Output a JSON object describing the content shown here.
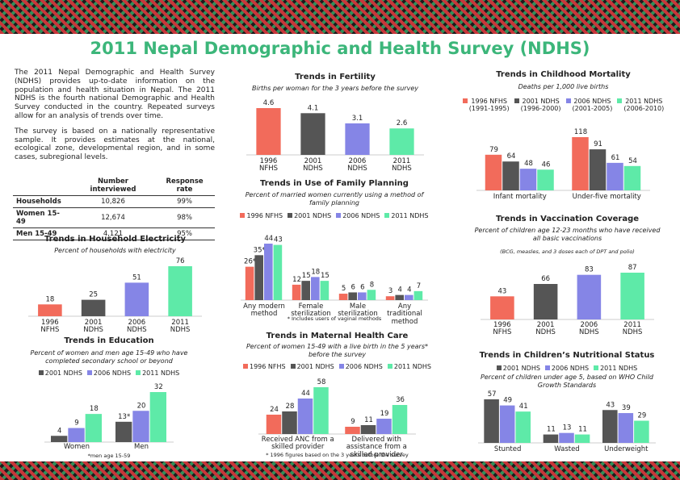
{
  "title": "2011 Nepal Demographic and Health Survey (NDHS)",
  "intro": [
    "The 2011 Nepal Demographic and Health Survey (NDHS) provides up-to-date information on the population and health situation in Nepal. The 2011 NDHS is the fourth national Demographic and Health Survey conducted in the country. Repeated surveys allow for an analysis of trends over time.",
    "The survey is based on a nationally representative sample. It provides estimates at the national, ecological zone, developmental region, and in some cases, subregional levels."
  ],
  "table": {
    "header": [
      "Number interviewed",
      "Response rate"
    ],
    "rows": [
      [
        "Households",
        "10,826",
        "99%"
      ],
      [
        "Women 15-49",
        "12,674",
        "98%"
      ],
      [
        "Men 15-49",
        "4,121",
        "95%"
      ]
    ]
  },
  "chart_data": [
    {
      "type": "bar",
      "title": "Trends in Fertility",
      "subtitle": "Births per woman for the 3 years before the survey",
      "categories": [
        "1996 NFHS",
        "2001 NDHS",
        "2006 NDHS",
        "2011 NDHS"
      ],
      "values": [
        4.6,
        4.1,
        3.1,
        2.6
      ],
      "colors": [
        "#f26b5b",
        "#555555",
        "#8585e6",
        "#5eeaa8"
      ]
    },
    {
      "type": "bar",
      "title": "Trends in Household Electricity",
      "subtitle": "Percent of households with electricity",
      "categories": [
        "1996 NFHS",
        "2001 NDHS",
        "2006 NDHS",
        "2011 NDHS"
      ],
      "values": [
        18,
        25,
        51,
        76
      ],
      "colors": [
        "#f26b5b",
        "#555555",
        "#8585e6",
        "#5eeaa8"
      ]
    },
    {
      "type": "bar",
      "title": "Trends in Use of Family Planning",
      "subtitle": "Percent of married women currently using a method of family planning",
      "categories": [
        "Any modern method",
        "Female sterilization",
        "Male sterilization",
        "Any traditional method"
      ],
      "series": [
        {
          "name": "1996 NFHS",
          "color": "#f26b5b",
          "values": [
            26,
            12,
            5,
            3
          ],
          "value_labels": [
            "26*",
            "12",
            "5",
            "3"
          ]
        },
        {
          "name": "2001 NDHS",
          "color": "#555555",
          "values": [
            35,
            15,
            6,
            4
          ],
          "value_labels": [
            "35*",
            "15",
            "6",
            "4"
          ]
        },
        {
          "name": "2006 NDHS",
          "color": "#8585e6",
          "values": [
            44,
            18,
            6,
            4
          ]
        },
        {
          "name": "2011 NDHS",
          "color": "#5eeaa8",
          "values": [
            43,
            15,
            8,
            7
          ]
        }
      ],
      "note": "* Includes users of vaginal methods"
    },
    {
      "type": "bar",
      "title": "Trends in Education",
      "subtitle": "Percent of women and men age 15-49 who have completed secondary school or beyond",
      "categories": [
        "Women",
        "Men"
      ],
      "series": [
        {
          "name": "2001 NDHS",
          "color": "#555555",
          "values": [
            4,
            13
          ],
          "value_labels": [
            "4",
            "13*"
          ]
        },
        {
          "name": "2006 NDHS",
          "color": "#8585e6",
          "values": [
            9,
            20
          ]
        },
        {
          "name": "2011 NDHS",
          "color": "#5eeaa8",
          "values": [
            18,
            32
          ]
        }
      ],
      "note": "*men age 15-59"
    },
    {
      "type": "bar",
      "title": "Trends in Maternal Health Care",
      "subtitle": "Percent of women 15-49 with a live birth in the 5 years* before the survey",
      "categories": [
        "Received ANC from a skilled provider",
        "Delivered with assistance from a skilled provider"
      ],
      "series": [
        {
          "name": "1996 NFHS",
          "color": "#f26b5b",
          "values": [
            24,
            9
          ]
        },
        {
          "name": "2001 NDHS",
          "color": "#555555",
          "values": [
            28,
            11
          ]
        },
        {
          "name": "2006 NDHS",
          "color": "#8585e6",
          "values": [
            44,
            19
          ]
        },
        {
          "name": "2011 NDHS",
          "color": "#5eeaa8",
          "values": [
            58,
            36
          ]
        }
      ],
      "note": "* 1996 figures based on the 3 years before the survey"
    },
    {
      "type": "bar",
      "title": "Trends in Childhood Mortality",
      "subtitle": "Deaths per 1,000 live births",
      "categories": [
        "Infant mortality",
        "Under-five mortality"
      ],
      "series": [
        {
          "name": "1996 NFHS",
          "period": "(1991-1995)",
          "color": "#f26b5b",
          "values": [
            79,
            118
          ]
        },
        {
          "name": "2001 NDHS",
          "period": "(1996-2000)",
          "color": "#555555",
          "values": [
            64,
            91
          ]
        },
        {
          "name": "2006 NDHS",
          "period": "(2001-2005)",
          "color": "#8585e6",
          "values": [
            48,
            61
          ]
        },
        {
          "name": "2011 NDHS",
          "period": "(2006-2010)",
          "color": "#5eeaa8",
          "values": [
            46,
            54
          ]
        }
      ]
    },
    {
      "type": "bar",
      "title": "Trends in Vaccination Coverage",
      "subtitle": "Percent of children age 12-23 months who have received all basic vaccinations",
      "note": "(BCG, measles, and 3 doses each of DPT and polio)",
      "categories": [
        "1996 NFHS",
        "2001 NDHS",
        "2006 NDHS",
        "2011 NDHS"
      ],
      "values": [
        43,
        66,
        83,
        87
      ],
      "colors": [
        "#f26b5b",
        "#555555",
        "#8585e6",
        "#5eeaa8"
      ]
    },
    {
      "type": "bar",
      "title": "Trends in Children’s Nutritional Status",
      "subtitle": "Percent of children under age 5, based on WHO Child Growth Standards",
      "categories": [
        "Stunted",
        "Wasted",
        "Underweight"
      ],
      "series": [
        {
          "name": "2001 NDHS",
          "color": "#555555",
          "values": [
            57,
            11,
            43
          ]
        },
        {
          "name": "2006 NDHS",
          "color": "#8585e6",
          "values": [
            49,
            13,
            39
          ]
        },
        {
          "name": "2011 NDHS",
          "color": "#5eeaa8",
          "values": [
            41,
            11,
            29
          ]
        }
      ]
    }
  ]
}
